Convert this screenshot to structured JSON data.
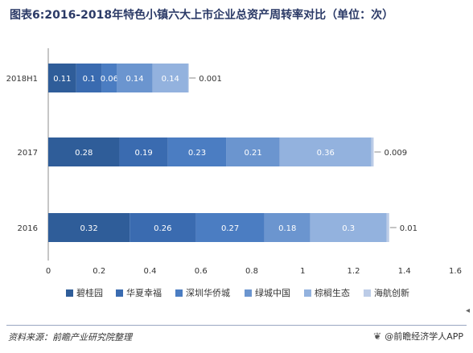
{
  "title": "图表6:2016-2018年特色小镇六大上市企业总资产周转率对比（单位：次）",
  "footer": {
    "source": "资料来源：前瞻产业研究院整理",
    "brand": "@前瞻经济学人APP",
    "brand_icon": "leaf-icon"
  },
  "chart_data": {
    "type": "bar",
    "orientation": "horizontal",
    "stacked": true,
    "categories": [
      "2018H1",
      "2017",
      "2016"
    ],
    "series": [
      {
        "name": "碧桂园",
        "color": "#2f5d99",
        "values": [
          0.11,
          0.28,
          0.32
        ]
      },
      {
        "name": "华夏幸福",
        "color": "#3a6bb0",
        "values": [
          0.1,
          0.19,
          0.26
        ]
      },
      {
        "name": "深圳华侨城",
        "color": "#4b7dc2",
        "values": [
          0.06,
          0.23,
          0.27
        ]
      },
      {
        "name": "绿城中国",
        "color": "#6b95cf",
        "values": [
          0.14,
          0.21,
          0.18
        ]
      },
      {
        "name": "棕榈生态",
        "color": "#93b2de",
        "values": [
          0.14,
          0.36,
          0.3
        ]
      },
      {
        "name": "海航创新",
        "color": "#bccce7",
        "values": [
          0.001,
          0.009,
          0.01
        ]
      }
    ],
    "xlim": [
      0,
      1.6
    ],
    "xticks": [
      "0",
      "0.2",
      "0.4",
      "0.6",
      "0.8",
      "1",
      "1.2",
      "1.4",
      "1.6"
    ],
    "grid": false,
    "legend_position": "bottom"
  }
}
